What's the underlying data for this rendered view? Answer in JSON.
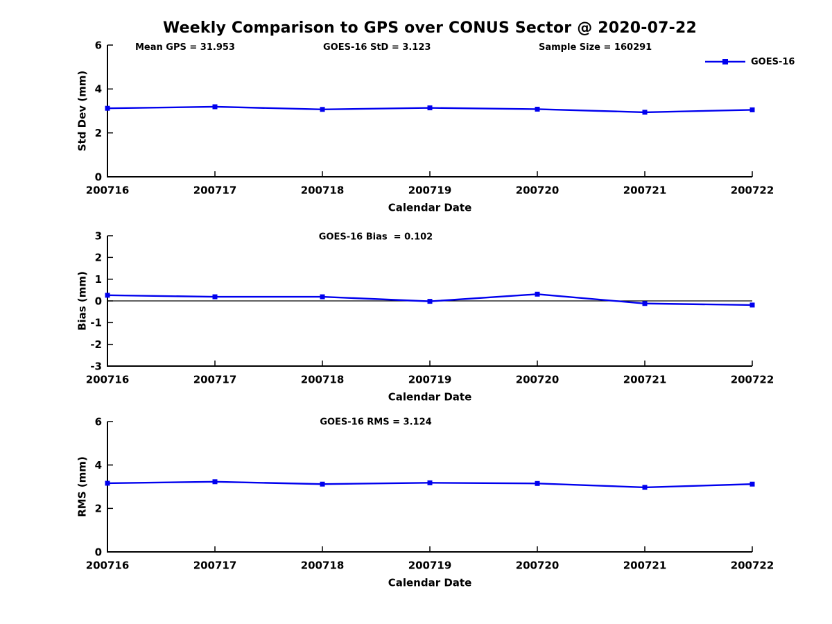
{
  "title": "Weekly Comparison to GPS over CONUS Sector @ 2020-07-22",
  "annotations": {
    "mean_gps": "Mean GPS = 31.953",
    "std": "GOES-16 StD = 3.123",
    "sample_size": "Sample Size = 160291"
  },
  "legend": {
    "label": "GOES-16",
    "color": "#0000EE",
    "position": "top-right",
    "marker": "square"
  },
  "colors": {
    "line": "#0000EE",
    "axis": "#000000",
    "background": "#ffffff"
  },
  "chart_data": [
    {
      "type": "line",
      "subtitle": "",
      "categories": [
        "200716",
        "200717",
        "200718",
        "200719",
        "200720",
        "200721",
        "200722"
      ],
      "series": [
        {
          "name": "GOES-16",
          "values": [
            3.12,
            3.19,
            3.07,
            3.14,
            3.08,
            2.94,
            3.05
          ]
        }
      ],
      "xlabel": "Calendar Date",
      "ylabel": "Std Dev (mm)",
      "ylim": [
        0,
        6
      ],
      "yticks": [
        0,
        2,
        4,
        6
      ],
      "grid": false,
      "zero_line": false,
      "marker": "square"
    },
    {
      "type": "line",
      "subtitle": "GOES-16 Bias  = 0.102",
      "categories": [
        "200716",
        "200717",
        "200718",
        "200719",
        "200720",
        "200721",
        "200722"
      ],
      "series": [
        {
          "name": "GOES-16",
          "values": [
            0.26,
            0.19,
            0.19,
            -0.02,
            0.31,
            -0.12,
            -0.19
          ]
        }
      ],
      "xlabel": "Calendar Date",
      "ylabel": "Bias (mm)",
      "ylim": [
        -3,
        3
      ],
      "yticks": [
        -3,
        -2,
        -1,
        0,
        1,
        2,
        3
      ],
      "grid": false,
      "zero_line": true,
      "marker": "square"
    },
    {
      "type": "line",
      "subtitle": "GOES-16 RMS = 3.124",
      "categories": [
        "200716",
        "200717",
        "200718",
        "200719",
        "200720",
        "200721",
        "200722"
      ],
      "series": [
        {
          "name": "GOES-16",
          "values": [
            3.16,
            3.23,
            3.12,
            3.18,
            3.15,
            2.97,
            3.12
          ]
        }
      ],
      "xlabel": "Calendar Date",
      "ylabel": "RMS (mm)",
      "ylim": [
        0,
        6
      ],
      "yticks": [
        0,
        2,
        4,
        6
      ],
      "grid": false,
      "zero_line": false,
      "marker": "square"
    }
  ]
}
